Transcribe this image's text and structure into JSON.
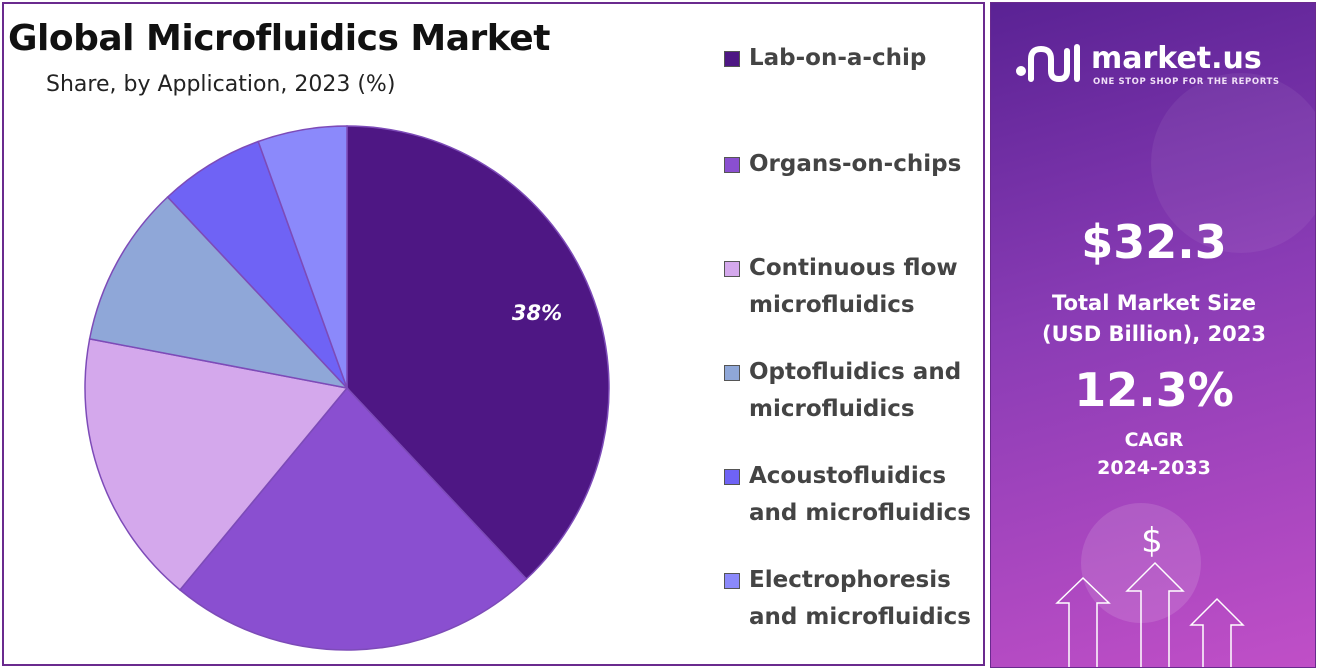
{
  "title": "Global Microfluidics Market",
  "subtitle": "Share, by Application, 2023 (%)",
  "chart_data": {
    "type": "pie",
    "categories": [
      "Lab-on-a-chip",
      "Organs-on-chips",
      "Continuous flow microfluidics",
      "Optofluidics and microfluidics",
      "Acoustofluidics and microfluidics",
      "Electrophoresis and microfluidics"
    ],
    "values": [
      38,
      23,
      17,
      10,
      6.5,
      5.5
    ],
    "colors": [
      "#4e1784",
      "#8a4fd0",
      "#d4a8ec",
      "#8fa7d8",
      "#6f63f5",
      "#8b89fb"
    ],
    "data_labels": [
      "38%",
      "",
      "",
      "",
      "",
      ""
    ],
    "legend_position": "right"
  },
  "legend": [
    {
      "lines": [
        "Lab-on-a-chip"
      ],
      "color": "#4e1784"
    },
    {
      "lines": [
        "Organs-on-chips"
      ],
      "color": "#8a4fd0"
    },
    {
      "lines": [
        "Continuous flow",
        "microfluidics"
      ],
      "color": "#d4a8ec"
    },
    {
      "lines": [
        "Optofluidics and",
        "microfluidics"
      ],
      "color": "#8fa7d8"
    },
    {
      "lines": [
        "Acoustofluidics",
        "and microfluidics"
      ],
      "color": "#6f63f5"
    },
    {
      "lines": [
        "Electrophoresis",
        "and microfluidics"
      ],
      "color": "#8b89fb"
    }
  ],
  "panel": {
    "brand_name": "market.us",
    "brand_tagline": "ONE STOP SHOP FOR THE REPORTS",
    "market_size_value": "$32.3",
    "market_size_caption_1": "Total Market Size",
    "market_size_caption_2": "(USD Billion), 2023",
    "cagr_value": "12.3%",
    "cagr_label": "CAGR",
    "cagr_period": "2024-2033",
    "dollar_symbol": "$"
  }
}
